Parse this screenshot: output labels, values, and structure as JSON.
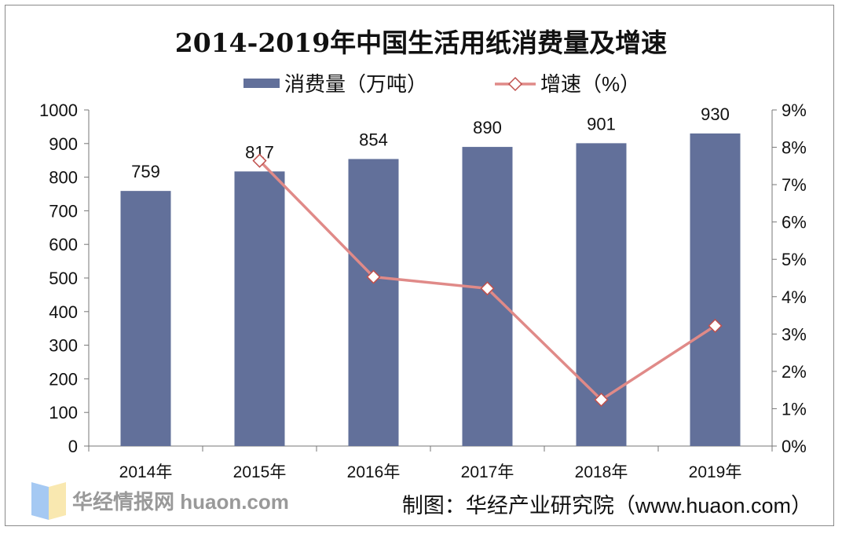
{
  "chart_data": {
    "type": "bar+line",
    "title": "2014-2019年中国生活用纸消费量及增速",
    "categories": [
      "2014年",
      "2015年",
      "2016年",
      "2017年",
      "2018年",
      "2019年"
    ],
    "series": [
      {
        "name": "消费量（万吨）",
        "type": "bar",
        "axis": "left",
        "values": [
          759,
          817,
          854,
          890,
          901,
          930
        ],
        "color": "#62709a"
      },
      {
        "name": "增速（%）",
        "type": "line",
        "axis": "right",
        "values": [
          null,
          7.64,
          4.53,
          4.22,
          1.24,
          3.22
        ],
        "color": "#e08a88",
        "marker": "diamond"
      }
    ],
    "left_axis": {
      "ylim": [
        0,
        1000
      ],
      "ticks": [
        0,
        100,
        200,
        300,
        400,
        500,
        600,
        700,
        800,
        900,
        1000
      ]
    },
    "right_axis": {
      "ylim": [
        0,
        9
      ],
      "ticks": [
        "0%",
        "1%",
        "2%",
        "3%",
        "4%",
        "5%",
        "6%",
        "7%",
        "8%",
        "9%"
      ]
    },
    "data_labels": [
      "759",
      "817",
      "854",
      "890",
      "901",
      "930"
    ],
    "legend": "top",
    "grid": false
  },
  "source": "制图：华经产业研究院（www.huaon.com）",
  "watermark": "华经情报网 huaon.com"
}
